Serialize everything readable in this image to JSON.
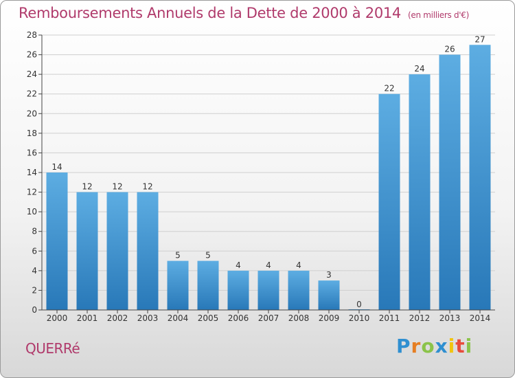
{
  "title": "Remboursements Annuels de la Dette de 2000 à 2014",
  "unit": "(en milliers d'€)",
  "commune": "QUERRé",
  "brand": "Proxiti",
  "colors": {
    "bar_light": "#5dade2",
    "bar_dark": "#2878b8",
    "title": "#b03a6b",
    "grid": "#cfcfcf"
  },
  "chart_data": {
    "type": "bar",
    "title": "Remboursements Annuels de la Dette de 2000 à 2014",
    "subtitle": "(en milliers d'€)",
    "categories": [
      "2000",
      "2001",
      "2002",
      "2003",
      "2004",
      "2005",
      "2006",
      "2007",
      "2008",
      "2009",
      "2010",
      "2011",
      "2012",
      "2013",
      "2014"
    ],
    "values": [
      14,
      12,
      12,
      12,
      5,
      5,
      4,
      4,
      4,
      3,
      0,
      22,
      24,
      26,
      27
    ],
    "ylim": [
      0,
      28
    ],
    "yticks": [
      0,
      2,
      4,
      6,
      8,
      10,
      12,
      14,
      16,
      18,
      20,
      22,
      24,
      26,
      28
    ],
    "grid": true,
    "data_labels": true
  }
}
